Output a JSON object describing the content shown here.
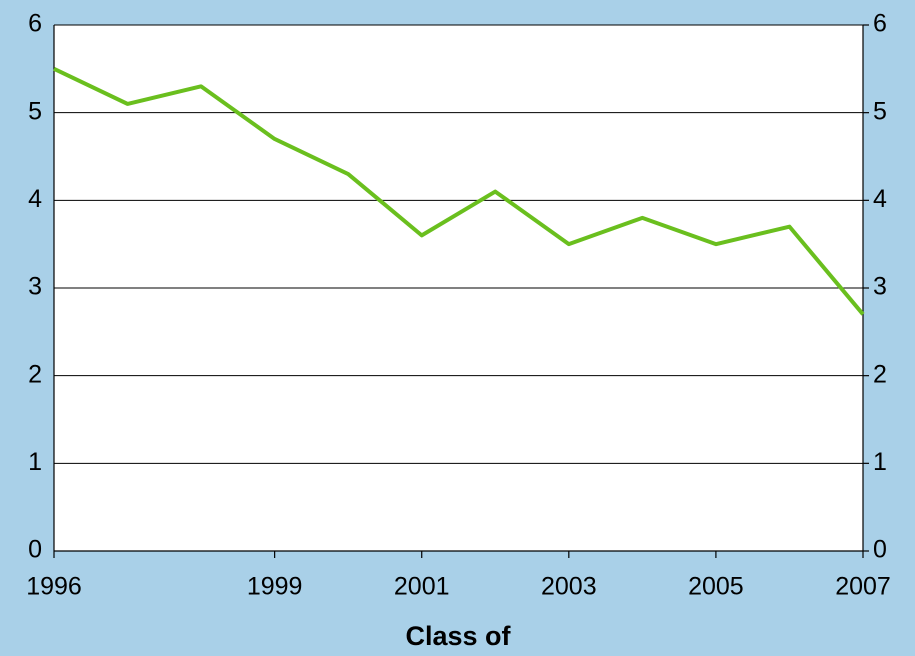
{
  "chart_data": {
    "type": "line",
    "x": [
      1996,
      1997,
      1998,
      1999,
      2000,
      2001,
      2002,
      2003,
      2004,
      2005,
      2006,
      2007
    ],
    "values": [
      5.5,
      5.1,
      5.3,
      4.7,
      4.3,
      3.6,
      4.1,
      3.5,
      3.8,
      3.5,
      3.7,
      2.7
    ],
    "color": "#6abf1e",
    "xlabel": "Class of",
    "xlim": [
      1996,
      2007
    ],
    "xticks": [
      1996,
      1999,
      2001,
      2003,
      2005,
      2007
    ],
    "ylim": [
      0,
      6
    ],
    "yticks": [
      0,
      1,
      2,
      3,
      4,
      5,
      6
    ],
    "y2lim": [
      0,
      6
    ],
    "y2ticks": [
      0,
      1,
      2,
      3,
      4,
      5,
      6
    ],
    "grid": true
  }
}
